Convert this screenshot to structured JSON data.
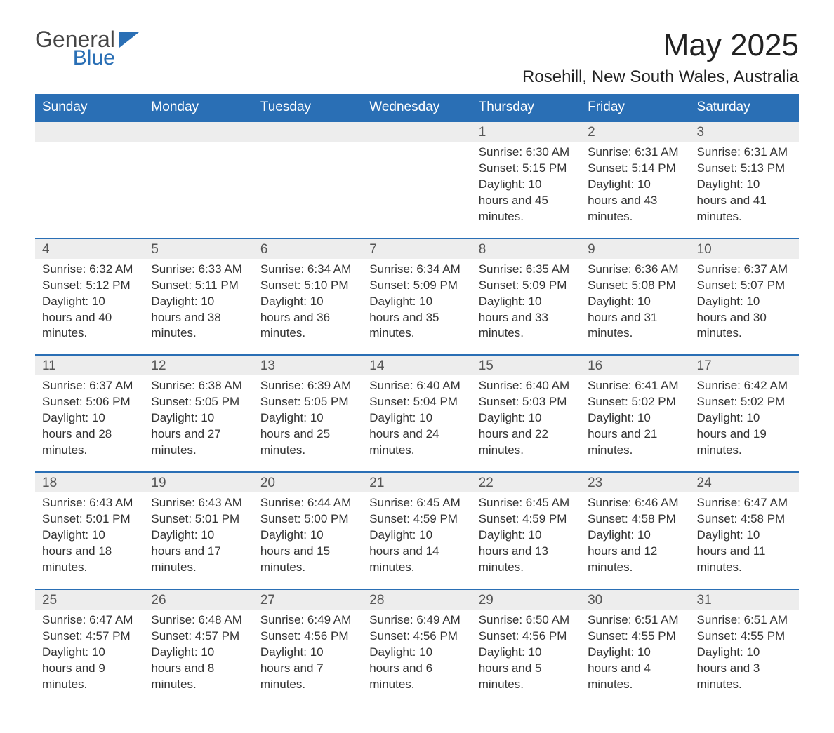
{
  "logo": {
    "word1": "General",
    "word2": "Blue"
  },
  "title": "May 2025",
  "location": "Rosehill, New South Wales, Australia",
  "colors": {
    "header_bg": "#2a6fb5",
    "header_text": "#ffffff",
    "daynum_bg": "#ededed",
    "row_border": "#2a6fb5",
    "body_text": "#333333",
    "page_bg": "#ffffff",
    "logo_accent": "#2a6fb5"
  },
  "weekdays": [
    "Sunday",
    "Monday",
    "Tuesday",
    "Wednesday",
    "Thursday",
    "Friday",
    "Saturday"
  ],
  "weeks": [
    [
      null,
      null,
      null,
      null,
      {
        "n": "1",
        "sunrise": "6:30 AM",
        "sunset": "5:15 PM",
        "daylight": "10 hours and 45 minutes."
      },
      {
        "n": "2",
        "sunrise": "6:31 AM",
        "sunset": "5:14 PM",
        "daylight": "10 hours and 43 minutes."
      },
      {
        "n": "3",
        "sunrise": "6:31 AM",
        "sunset": "5:13 PM",
        "daylight": "10 hours and 41 minutes."
      }
    ],
    [
      {
        "n": "4",
        "sunrise": "6:32 AM",
        "sunset": "5:12 PM",
        "daylight": "10 hours and 40 minutes."
      },
      {
        "n": "5",
        "sunrise": "6:33 AM",
        "sunset": "5:11 PM",
        "daylight": "10 hours and 38 minutes."
      },
      {
        "n": "6",
        "sunrise": "6:34 AM",
        "sunset": "5:10 PM",
        "daylight": "10 hours and 36 minutes."
      },
      {
        "n": "7",
        "sunrise": "6:34 AM",
        "sunset": "5:09 PM",
        "daylight": "10 hours and 35 minutes."
      },
      {
        "n": "8",
        "sunrise": "6:35 AM",
        "sunset": "5:09 PM",
        "daylight": "10 hours and 33 minutes."
      },
      {
        "n": "9",
        "sunrise": "6:36 AM",
        "sunset": "5:08 PM",
        "daylight": "10 hours and 31 minutes."
      },
      {
        "n": "10",
        "sunrise": "6:37 AM",
        "sunset": "5:07 PM",
        "daylight": "10 hours and 30 minutes."
      }
    ],
    [
      {
        "n": "11",
        "sunrise": "6:37 AM",
        "sunset": "5:06 PM",
        "daylight": "10 hours and 28 minutes."
      },
      {
        "n": "12",
        "sunrise": "6:38 AM",
        "sunset": "5:05 PM",
        "daylight": "10 hours and 27 minutes."
      },
      {
        "n": "13",
        "sunrise": "6:39 AM",
        "sunset": "5:05 PM",
        "daylight": "10 hours and 25 minutes."
      },
      {
        "n": "14",
        "sunrise": "6:40 AM",
        "sunset": "5:04 PM",
        "daylight": "10 hours and 24 minutes."
      },
      {
        "n": "15",
        "sunrise": "6:40 AM",
        "sunset": "5:03 PM",
        "daylight": "10 hours and 22 minutes."
      },
      {
        "n": "16",
        "sunrise": "6:41 AM",
        "sunset": "5:02 PM",
        "daylight": "10 hours and 21 minutes."
      },
      {
        "n": "17",
        "sunrise": "6:42 AM",
        "sunset": "5:02 PM",
        "daylight": "10 hours and 19 minutes."
      }
    ],
    [
      {
        "n": "18",
        "sunrise": "6:43 AM",
        "sunset": "5:01 PM",
        "daylight": "10 hours and 18 minutes."
      },
      {
        "n": "19",
        "sunrise": "6:43 AM",
        "sunset": "5:01 PM",
        "daylight": "10 hours and 17 minutes."
      },
      {
        "n": "20",
        "sunrise": "6:44 AM",
        "sunset": "5:00 PM",
        "daylight": "10 hours and 15 minutes."
      },
      {
        "n": "21",
        "sunrise": "6:45 AM",
        "sunset": "4:59 PM",
        "daylight": "10 hours and 14 minutes."
      },
      {
        "n": "22",
        "sunrise": "6:45 AM",
        "sunset": "4:59 PM",
        "daylight": "10 hours and 13 minutes."
      },
      {
        "n": "23",
        "sunrise": "6:46 AM",
        "sunset": "4:58 PM",
        "daylight": "10 hours and 12 minutes."
      },
      {
        "n": "24",
        "sunrise": "6:47 AM",
        "sunset": "4:58 PM",
        "daylight": "10 hours and 11 minutes."
      }
    ],
    [
      {
        "n": "25",
        "sunrise": "6:47 AM",
        "sunset": "4:57 PM",
        "daylight": "10 hours and 9 minutes."
      },
      {
        "n": "26",
        "sunrise": "6:48 AM",
        "sunset": "4:57 PM",
        "daylight": "10 hours and 8 minutes."
      },
      {
        "n": "27",
        "sunrise": "6:49 AM",
        "sunset": "4:56 PM",
        "daylight": "10 hours and 7 minutes."
      },
      {
        "n": "28",
        "sunrise": "6:49 AM",
        "sunset": "4:56 PM",
        "daylight": "10 hours and 6 minutes."
      },
      {
        "n": "29",
        "sunrise": "6:50 AM",
        "sunset": "4:56 PM",
        "daylight": "10 hours and 5 minutes."
      },
      {
        "n": "30",
        "sunrise": "6:51 AM",
        "sunset": "4:55 PM",
        "daylight": "10 hours and 4 minutes."
      },
      {
        "n": "31",
        "sunrise": "6:51 AM",
        "sunset": "4:55 PM",
        "daylight": "10 hours and 3 minutes."
      }
    ]
  ],
  "labels": {
    "sunrise": "Sunrise:",
    "sunset": "Sunset:",
    "daylight": "Daylight:"
  }
}
